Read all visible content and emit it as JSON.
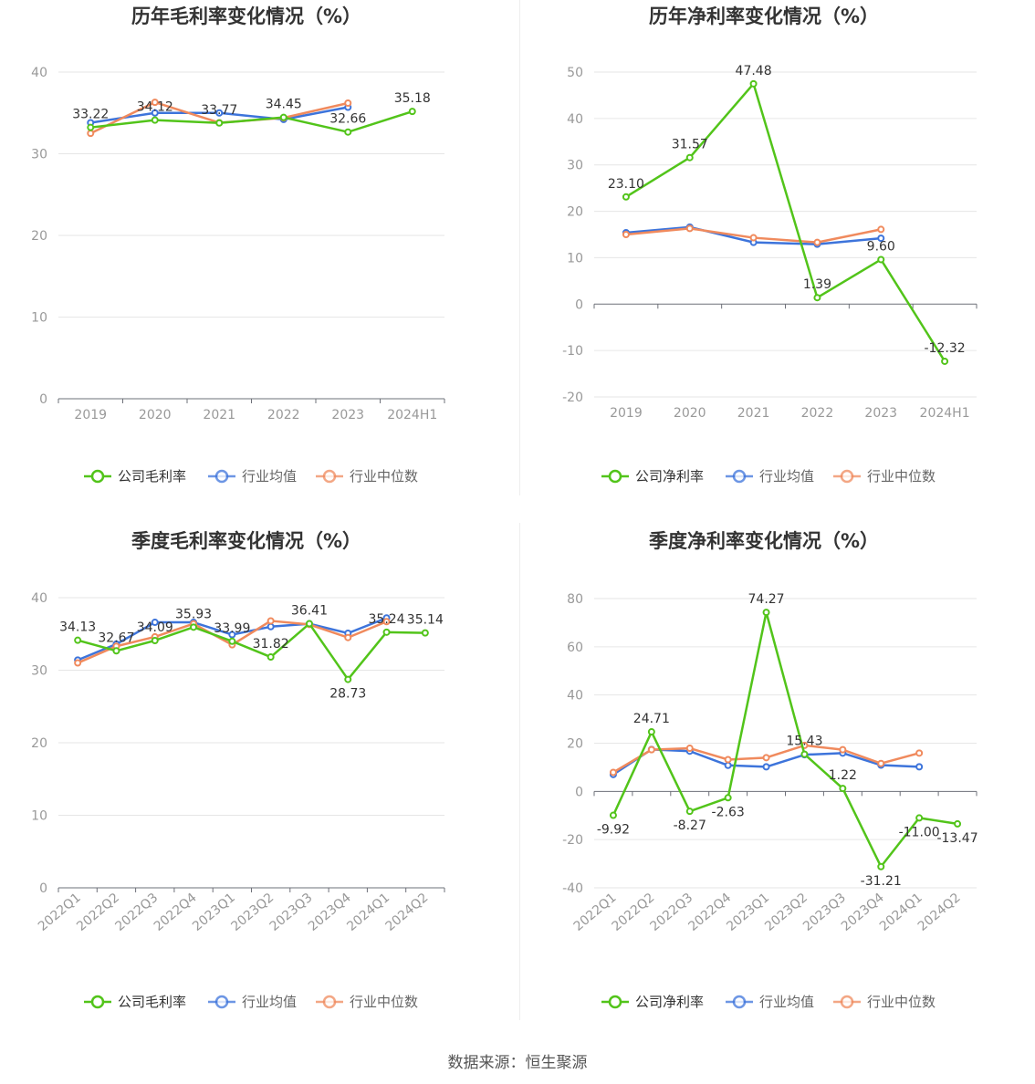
{
  "colors": {
    "company": "#52c41a",
    "avg": "#3d74db",
    "median": "#f08a5d"
  },
  "legends": {
    "gross": [
      "公司毛利率",
      "行业均值",
      "行业中位数"
    ],
    "net": [
      "公司净利率",
      "行业均值",
      "行业中位数"
    ]
  },
  "source": "数据来源：恒生聚源",
  "chart_data": [
    {
      "type": "line",
      "title": "历年毛利率变化情况（%）",
      "categories": [
        "2019",
        "2020",
        "2021",
        "2022",
        "2023",
        "2024H1"
      ],
      "ylim": [
        0,
        40
      ],
      "yticks": [
        0,
        10,
        20,
        30,
        40
      ],
      "legend_position": "bottom",
      "series": [
        {
          "name": "公司毛利率",
          "role": "company",
          "values": [
            33.22,
            34.12,
            33.77,
            34.45,
            32.66,
            35.18
          ]
        },
        {
          "name": "行业均值",
          "role": "avg",
          "values": [
            33.8,
            35.0,
            35.0,
            34.2,
            35.7,
            null
          ]
        },
        {
          "name": "行业中位数",
          "role": "median",
          "values": [
            32.5,
            36.3,
            33.8,
            34.4,
            36.2,
            null
          ]
        }
      ],
      "data_labels": [
        "33.22",
        "34.12",
        "33.77",
        "34.45",
        "32.66",
        "35.18"
      ]
    },
    {
      "type": "line",
      "title": "历年净利率变化情况（%）",
      "categories": [
        "2019",
        "2020",
        "2021",
        "2022",
        "2023",
        "2024H1"
      ],
      "ylim": [
        -20,
        50
      ],
      "yticks": [
        -20,
        -10,
        0,
        10,
        20,
        30,
        40,
        50
      ],
      "legend_position": "bottom",
      "series": [
        {
          "name": "公司净利率",
          "role": "company",
          "values": [
            23.1,
            31.57,
            47.48,
            1.39,
            9.6,
            -12.32
          ]
        },
        {
          "name": "行业均值",
          "role": "avg",
          "values": [
            15.4,
            16.6,
            13.3,
            12.9,
            14.2,
            null
          ]
        },
        {
          "name": "行业中位数",
          "role": "median",
          "values": [
            15.0,
            16.3,
            14.3,
            13.3,
            16.1,
            null
          ]
        }
      ],
      "data_labels": [
        "23.10",
        "31.57",
        "47.48",
        "1.39",
        "9.60",
        "-12.32"
      ]
    },
    {
      "type": "line",
      "title": "季度毛利率变化情况（%）",
      "categories": [
        "2022Q1",
        "2022Q2",
        "2022Q3",
        "2022Q4",
        "2023Q1",
        "2023Q2",
        "2023Q3",
        "2023Q4",
        "2024Q1",
        "2024Q2"
      ],
      "ylim": [
        0,
        40
      ],
      "yticks": [
        0,
        10,
        20,
        30,
        40
      ],
      "legend_position": "bottom",
      "series": [
        {
          "name": "公司毛利率",
          "role": "company",
          "values": [
            34.13,
            32.67,
            34.09,
            35.93,
            33.99,
            31.82,
            36.41,
            28.73,
            35.24,
            35.14
          ]
        },
        {
          "name": "行业均值",
          "role": "avg",
          "values": [
            31.4,
            33.6,
            36.6,
            36.6,
            34.9,
            36.0,
            36.4,
            35.1,
            37.2,
            null
          ]
        },
        {
          "name": "行业中位数",
          "role": "median",
          "values": [
            31.0,
            33.3,
            34.6,
            36.4,
            33.5,
            36.8,
            36.3,
            34.5,
            36.7,
            null
          ]
        }
      ],
      "data_labels": [
        "34.13",
        "32.67",
        "34.09",
        "35.93",
        "33.99",
        "31.82",
        "36.41",
        "28.73",
        "35.24",
        "35.14"
      ]
    },
    {
      "type": "line",
      "title": "季度净利率变化情况（%）",
      "categories": [
        "2022Q1",
        "2022Q2",
        "2022Q3",
        "2022Q4",
        "2023Q1",
        "2023Q2",
        "2023Q3",
        "2023Q4",
        "2024Q1",
        "2024Q2"
      ],
      "ylim": [
        -40,
        80
      ],
      "yticks": [
        -40,
        -20,
        0,
        20,
        40,
        60,
        80
      ],
      "legend_position": "bottom",
      "series": [
        {
          "name": "公司净利率",
          "role": "company",
          "values": [
            -9.92,
            24.71,
            -8.27,
            -2.63,
            74.27,
            15.43,
            1.22,
            -31.21,
            -11.0,
            -13.47
          ]
        },
        {
          "name": "行业均值",
          "role": "avg",
          "values": [
            7.0,
            17.4,
            16.7,
            10.8,
            10.2,
            15.2,
            15.9,
            10.9,
            10.2,
            null
          ]
        },
        {
          "name": "行业中位数",
          "role": "median",
          "values": [
            7.9,
            17.3,
            17.9,
            13.2,
            14.0,
            19.1,
            17.3,
            11.6,
            15.9,
            null
          ]
        }
      ],
      "data_labels": [
        "-9.92",
        "24.71",
        "-8.27",
        "-2.63",
        "74.27",
        "15.43",
        "1.22",
        "-31.21",
        "-11.00",
        "-13.47"
      ]
    }
  ]
}
